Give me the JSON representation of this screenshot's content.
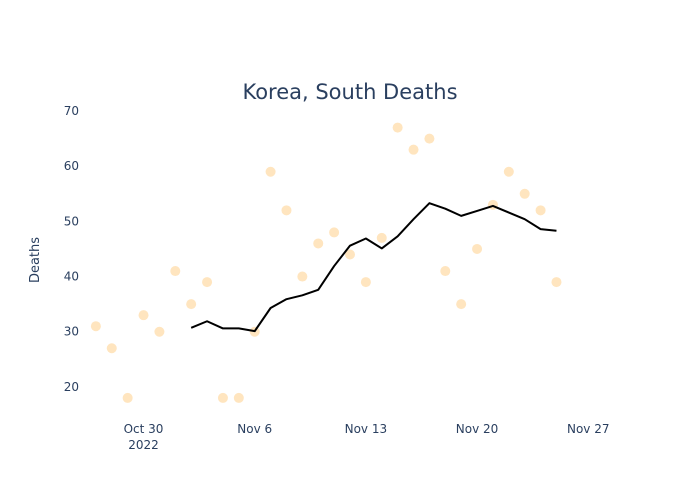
{
  "chart_data": {
    "type": "scatter",
    "title": "Korea, South Deaths",
    "xlabel": "",
    "ylabel": "Deaths",
    "ylim": [
      14,
      72
    ],
    "xlim": [
      "2022-10-26",
      "2022-11-29"
    ],
    "yticks": [
      20,
      30,
      40,
      50,
      60,
      70
    ],
    "xticks": [
      {
        "date": "2022-10-30",
        "label": "Oct 30",
        "sublabel": "2022"
      },
      {
        "date": "2022-11-06",
        "label": "Nov 6",
        "sublabel": ""
      },
      {
        "date": "2022-11-13",
        "label": "Nov 13",
        "sublabel": ""
      },
      {
        "date": "2022-11-20",
        "label": "Nov 20",
        "sublabel": ""
      },
      {
        "date": "2022-11-27",
        "label": "Nov 27",
        "sublabel": ""
      }
    ],
    "grid": false,
    "legend": false,
    "series": [
      {
        "mode": "markers",
        "color": "#ffe5bf",
        "points": [
          {
            "x": "2022-10-27",
            "y": 31
          },
          {
            "x": "2022-10-28",
            "y": 27
          },
          {
            "x": "2022-10-29",
            "y": 18
          },
          {
            "x": "2022-10-30",
            "y": 33
          },
          {
            "x": "2022-10-31",
            "y": 30
          },
          {
            "x": "2022-11-01",
            "y": 41
          },
          {
            "x": "2022-11-02",
            "y": 35
          },
          {
            "x": "2022-11-03",
            "y": 39
          },
          {
            "x": "2022-11-04",
            "y": 18
          },
          {
            "x": "2022-11-05",
            "y": 18
          },
          {
            "x": "2022-11-06",
            "y": 30
          },
          {
            "x": "2022-11-07",
            "y": 59
          },
          {
            "x": "2022-11-08",
            "y": 52
          },
          {
            "x": "2022-11-09",
            "y": 40
          },
          {
            "x": "2022-11-10",
            "y": 46
          },
          {
            "x": "2022-11-11",
            "y": 48
          },
          {
            "x": "2022-11-12",
            "y": 44
          },
          {
            "x": "2022-11-13",
            "y": 39
          },
          {
            "x": "2022-11-14",
            "y": 47
          },
          {
            "x": "2022-11-15",
            "y": 67
          },
          {
            "x": "2022-11-16",
            "y": 63
          },
          {
            "x": "2022-11-17",
            "y": 65
          },
          {
            "x": "2022-11-18",
            "y": 41
          },
          {
            "x": "2022-11-19",
            "y": 35
          },
          {
            "x": "2022-11-20",
            "y": 45
          },
          {
            "x": "2022-11-21",
            "y": 53
          },
          {
            "x": "2022-11-22",
            "y": 59
          },
          {
            "x": "2022-11-23",
            "y": 55
          },
          {
            "x": "2022-11-24",
            "y": 52
          },
          {
            "x": "2022-11-25",
            "y": 39
          }
        ]
      },
      {
        "mode": "line",
        "color": "#000000",
        "points": [
          {
            "x": "2022-11-02",
            "y": 30.7
          },
          {
            "x": "2022-11-03",
            "y": 31.9
          },
          {
            "x": "2022-11-04",
            "y": 30.6
          },
          {
            "x": "2022-11-05",
            "y": 30.6
          },
          {
            "x": "2022-11-06",
            "y": 30.1
          },
          {
            "x": "2022-11-07",
            "y": 34.3
          },
          {
            "x": "2022-11-08",
            "y": 35.9
          },
          {
            "x": "2022-11-09",
            "y": 36.6
          },
          {
            "x": "2022-11-10",
            "y": 37.6
          },
          {
            "x": "2022-11-11",
            "y": 41.9
          },
          {
            "x": "2022-11-12",
            "y": 45.6
          },
          {
            "x": "2022-11-13",
            "y": 46.9
          },
          {
            "x": "2022-11-14",
            "y": 45.1
          },
          {
            "x": "2022-11-15",
            "y": 47.3
          },
          {
            "x": "2022-11-16",
            "y": 50.4
          },
          {
            "x": "2022-11-17",
            "y": 53.3
          },
          {
            "x": "2022-11-18",
            "y": 52.3
          },
          {
            "x": "2022-11-19",
            "y": 51.0
          },
          {
            "x": "2022-11-20",
            "y": 51.9
          },
          {
            "x": "2022-11-21",
            "y": 52.8
          },
          {
            "x": "2022-11-22",
            "y": 51.6
          },
          {
            "x": "2022-11-23",
            "y": 50.4
          },
          {
            "x": "2022-11-24",
            "y": 48.6
          },
          {
            "x": "2022-11-25",
            "y": 48.3
          }
        ]
      }
    ]
  }
}
